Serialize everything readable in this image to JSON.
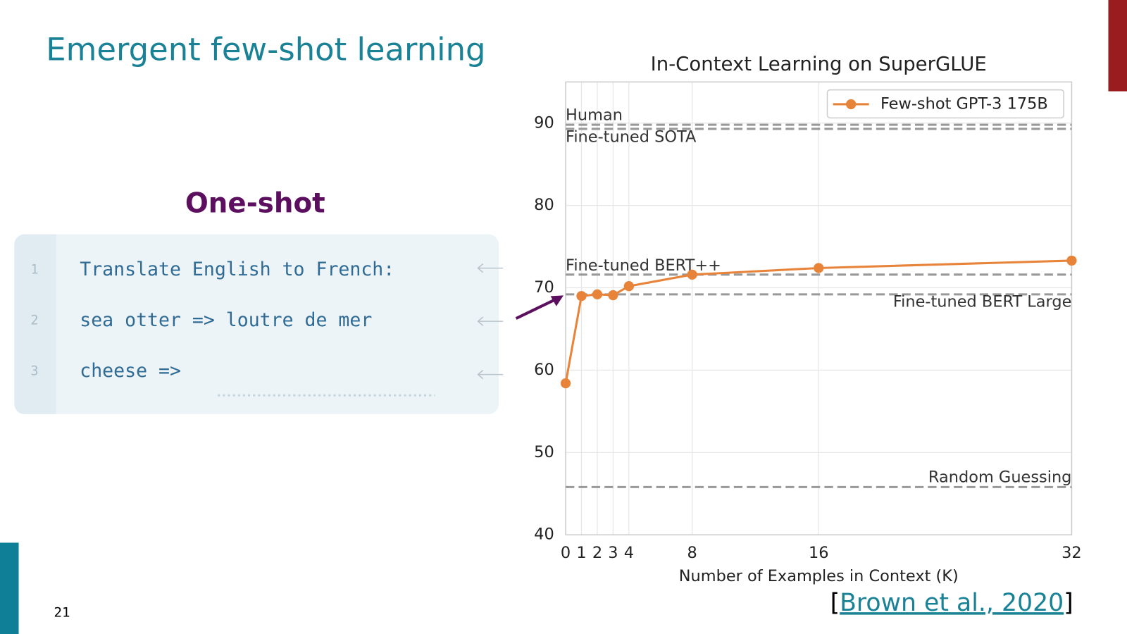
{
  "slide": {
    "title": "Emergent few-shot learning",
    "subtitle": "One-shot",
    "code_lines": [
      {
        "number": "1",
        "text": "Translate English to French:"
      },
      {
        "number": "2",
        "text": "sea otter => loutre de mer"
      },
      {
        "number": "3",
        "text": "cheese =>"
      }
    ],
    "page_number": "21",
    "citation": {
      "open": "[",
      "text": "Brown et al., 2020",
      "close": "]"
    }
  },
  "chart_data": {
    "type": "line",
    "title": "In-Context Learning on SuperGLUE",
    "x_label": "Number of Examples in Context (K)",
    "x": [
      0,
      1,
      2,
      3,
      4,
      8,
      16,
      32
    ],
    "series": [
      {
        "name": "Few-shot GPT-3 175B",
        "color": "#e8843a",
        "values": [
          58.4,
          69.0,
          69.2,
          69.1,
          70.2,
          71.6,
          72.4,
          73.3
        ]
      }
    ],
    "xlim": [
      0,
      32
    ],
    "xticks": [
      0,
      1,
      2,
      3,
      4,
      8,
      16,
      32
    ],
    "ylim": [
      40,
      95
    ],
    "yticks": [
      40,
      50,
      60,
      70,
      80,
      90
    ],
    "grid": true,
    "legend": "upper right",
    "reference_lines": [
      {
        "label": "Human",
        "value": 89.8
      },
      {
        "label": "Fine-tuned SOTA",
        "value": 89.3
      },
      {
        "label": "Fine-tuned BERT++",
        "value": 71.6
      },
      {
        "label": "Fine-tuned BERT Large",
        "value": 69.2
      },
      {
        "label": "Random Guessing",
        "value": 45.8
      }
    ]
  }
}
